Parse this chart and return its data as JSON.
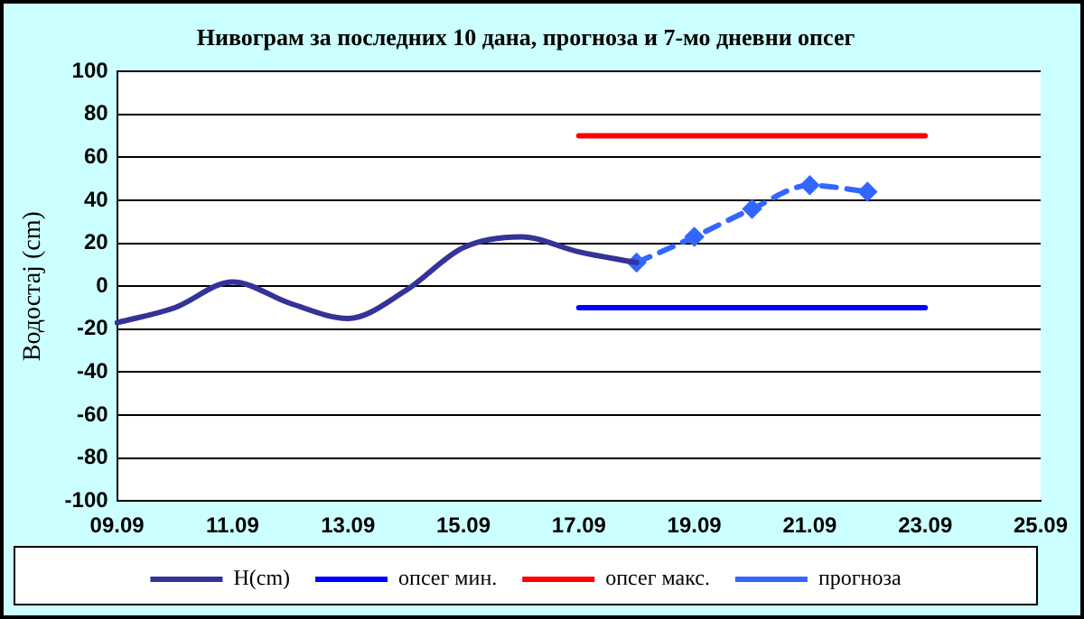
{
  "chart_data": {
    "type": "line",
    "title": "Нивограм за последних 10 дана, прогноза и 7-мо дневни опсег",
    "ylabel": "Водостај (cm)",
    "categories": [
      "09.09",
      null,
      "11.09",
      null,
      "13.09",
      null,
      "15.09",
      null,
      "17.09",
      null,
      "19.09",
      null,
      "21.09",
      null,
      "23.09",
      null,
      "25.09"
    ],
    "series": [
      {
        "name": "H(cm)",
        "color": "#333399",
        "values": [
          -17,
          -10,
          2,
          -8,
          -15,
          -2,
          18,
          23,
          16,
          11,
          null,
          null,
          null,
          null,
          null,
          null,
          null
        ]
      },
      {
        "name": "опсег мин.",
        "color": "#0000ff",
        "values": [
          null,
          null,
          null,
          null,
          null,
          null,
          null,
          null,
          -10,
          -10,
          -10,
          -10,
          -10,
          -10,
          -10,
          null,
          null
        ]
      },
      {
        "name": "опсег макс.",
        "color": "#ff0000",
        "values": [
          null,
          null,
          null,
          null,
          null,
          null,
          null,
          null,
          70,
          70,
          70,
          70,
          70,
          70,
          70,
          null,
          null
        ]
      },
      {
        "name": "прогноза",
        "color": "#3366ff",
        "line_style": "dashed",
        "marker": "diamond",
        "values": [
          null,
          null,
          null,
          null,
          null,
          null,
          null,
          null,
          null,
          11,
          23,
          36,
          47,
          44,
          null,
          null,
          null
        ]
      }
    ],
    "ylim": [
      -100,
      100
    ],
    "yticks": [
      -100,
      -80,
      -60,
      -40,
      -20,
      0,
      20,
      40,
      60,
      80,
      100
    ],
    "grid": "y",
    "legend": "bottom",
    "marker": "none",
    "line_style": "solid"
  }
}
